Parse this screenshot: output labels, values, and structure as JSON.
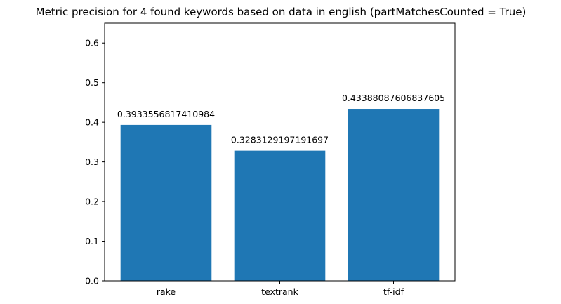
{
  "chart_data": {
    "type": "bar",
    "title": "Metric precision for 4 found keywords based on data in english (partMatchesCounted = True)",
    "xlabel": "",
    "ylabel": "",
    "categories": [
      "rake",
      "textrank",
      "tf-idf"
    ],
    "values": [
      0.3933556817410984,
      0.3283129197191697,
      0.43388087606837605
    ],
    "value_labels": [
      "0.3933556817410984",
      "0.3283129197191697",
      "0.43388087606837605"
    ],
    "ylim": [
      0.0,
      0.65
    ],
    "yticks": [
      0.0,
      0.1,
      0.2,
      0.3,
      0.4,
      0.5,
      0.6
    ],
    "ytick_labels": [
      "0.0",
      "0.1",
      "0.2",
      "0.3",
      "0.4",
      "0.5",
      "0.6"
    ],
    "grid": false,
    "legend": "none",
    "bar_color": "#1f77b4"
  }
}
